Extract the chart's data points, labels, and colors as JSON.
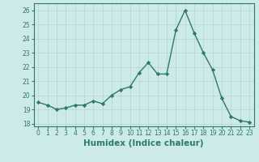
{
  "x": [
    0,
    1,
    2,
    3,
    4,
    5,
    6,
    7,
    8,
    9,
    10,
    11,
    12,
    13,
    14,
    15,
    16,
    17,
    18,
    19,
    20,
    21,
    22,
    23
  ],
  "y": [
    19.5,
    19.3,
    19.0,
    19.1,
    19.3,
    19.3,
    19.6,
    19.4,
    20.0,
    20.4,
    20.6,
    21.6,
    22.3,
    21.5,
    21.5,
    24.6,
    26.0,
    24.4,
    23.0,
    21.8,
    19.8,
    18.5,
    18.2,
    18.1
  ],
  "line_color": "#2d7a6a",
  "marker": "D",
  "marker_size": 2.2,
  "bg_color": "#cceae8",
  "grid_color": "#b8d8d5",
  "xlabel": "Humidex (Indice chaleur)",
  "ylim": [
    17.8,
    26.5
  ],
  "yticks": [
    18,
    19,
    20,
    21,
    22,
    23,
    24,
    25,
    26
  ],
  "xlim": [
    -0.5,
    23.5
  ],
  "xticks": [
    0,
    1,
    2,
    3,
    4,
    5,
    6,
    7,
    8,
    9,
    10,
    11,
    12,
    13,
    14,
    15,
    16,
    17,
    18,
    19,
    20,
    21,
    22,
    23
  ],
  "tick_label_fontsize": 5.5,
  "xlabel_fontsize": 7.5,
  "line_width": 1.0
}
